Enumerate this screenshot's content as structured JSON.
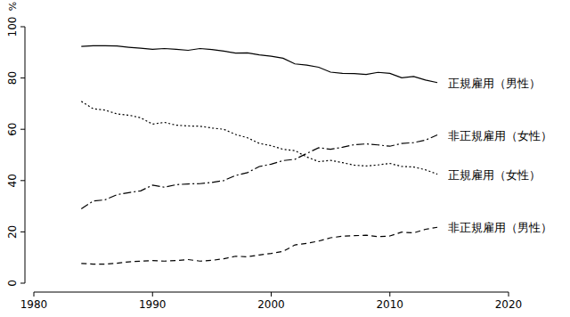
{
  "chart_data": {
    "type": "line",
    "y_label": "%",
    "x": [
      1984,
      1985,
      1986,
      1987,
      1988,
      1989,
      1990,
      1991,
      1992,
      1993,
      1994,
      1995,
      1996,
      1997,
      1998,
      1999,
      2000,
      2001,
      2002,
      2003,
      2004,
      2005,
      2006,
      2007,
      2008,
      2009,
      2010,
      2011,
      2012,
      2013,
      2014
    ],
    "xlim": [
      1980,
      2020
    ],
    "xticks": [
      1980,
      1990,
      2000,
      2010,
      2020
    ],
    "ylim": [
      0,
      100
    ],
    "yticks": [
      0,
      20,
      40,
      60,
      80,
      100
    ],
    "grid": false,
    "series": [
      {
        "name": "正規雇用（男性）",
        "color": "#000000",
        "line_style": "solid",
        "values": [
          92.3,
          92.6,
          92.6,
          92.5,
          92.0,
          91.6,
          91.2,
          91.5,
          91.2,
          90.8,
          91.5,
          91.1,
          90.5,
          89.7,
          89.8,
          89.0,
          88.5,
          87.7,
          85.5,
          85.0,
          84.2,
          82.3,
          81.8,
          81.7,
          81.4,
          82.2,
          81.8,
          80.1,
          80.6,
          79.2,
          78.2
        ]
      },
      {
        "name": "非正規雇用（女性）",
        "color": "#000000",
        "line_style": "dashdot",
        "values": [
          29.0,
          32.0,
          32.5,
          34.5,
          35.3,
          36.0,
          38.2,
          37.4,
          38.4,
          38.7,
          38.8,
          39.3,
          40.0,
          42.0,
          43.1,
          45.5,
          46.4,
          47.8,
          48.3,
          50.6,
          52.8,
          52.2,
          53.0,
          54.0,
          54.3,
          53.9,
          53.4,
          54.5,
          54.8,
          55.8,
          57.8
        ]
      },
      {
        "name": "正規雇用（女性）",
        "color": "#000000",
        "line_style": "dotted",
        "values": [
          70.9,
          68.0,
          67.5,
          66.0,
          65.5,
          64.5,
          62.0,
          62.7,
          61.6,
          61.3,
          61.2,
          60.5,
          60.0,
          58.0,
          56.7,
          54.5,
          53.6,
          52.2,
          51.7,
          49.2,
          47.4,
          47.9,
          47.0,
          46.0,
          45.7,
          46.1,
          46.7,
          45.5,
          45.3,
          44.2,
          42.5
        ]
      },
      {
        "name": "非正規雇用（男性）",
        "color": "#000000",
        "line_style": "dashed",
        "values": [
          7.7,
          7.4,
          7.4,
          7.8,
          8.3,
          8.6,
          8.8,
          8.6,
          8.8,
          9.2,
          8.6,
          8.9,
          9.5,
          10.5,
          10.3,
          11.0,
          11.6,
          12.4,
          14.9,
          15.5,
          16.4,
          17.7,
          18.3,
          18.5,
          18.7,
          18.1,
          18.4,
          19.9,
          19.6,
          21.0,
          21.8
        ]
      }
    ]
  }
}
